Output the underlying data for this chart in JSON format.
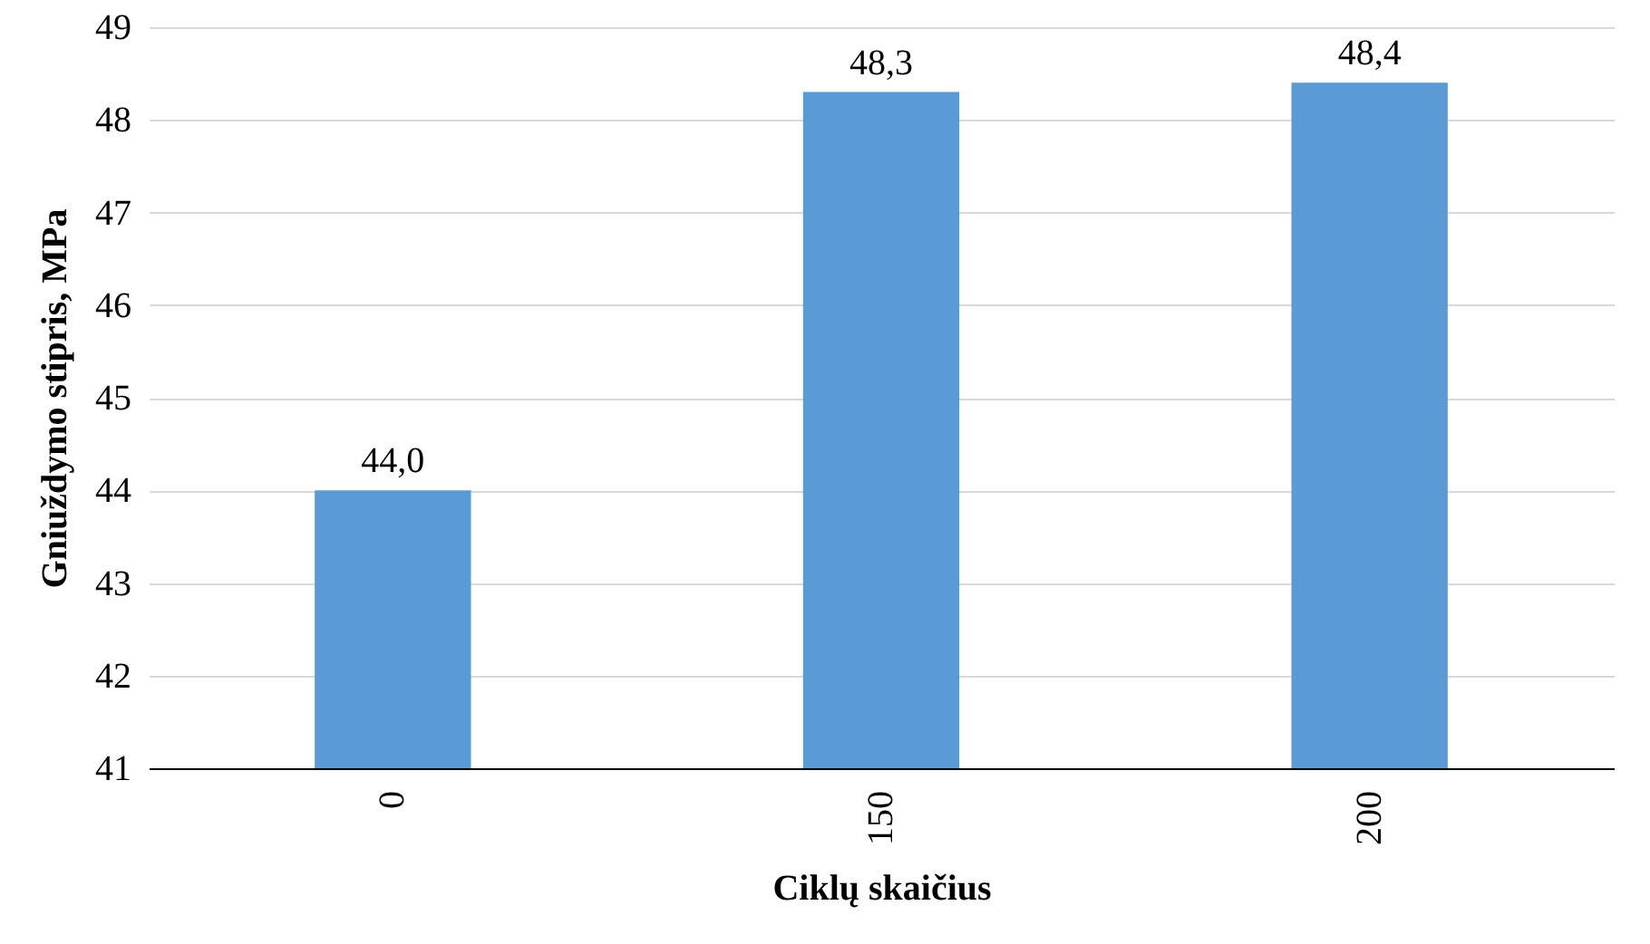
{
  "chart_data": {
    "type": "bar",
    "xlabel": "Ciklų skaičius",
    "ylabel": "Gniuždymo stipris, MPa",
    "categories": [
      "0",
      "150",
      "200"
    ],
    "values": [
      44.0,
      48.3,
      48.4
    ],
    "value_labels": [
      "44,0",
      "48,3",
      "48,4"
    ],
    "color": "#5b9bd5",
    "ylim": [
      41,
      49
    ],
    "yticks": [
      41,
      42,
      43,
      44,
      45,
      46,
      47,
      48,
      49
    ],
    "grid": "y"
  }
}
